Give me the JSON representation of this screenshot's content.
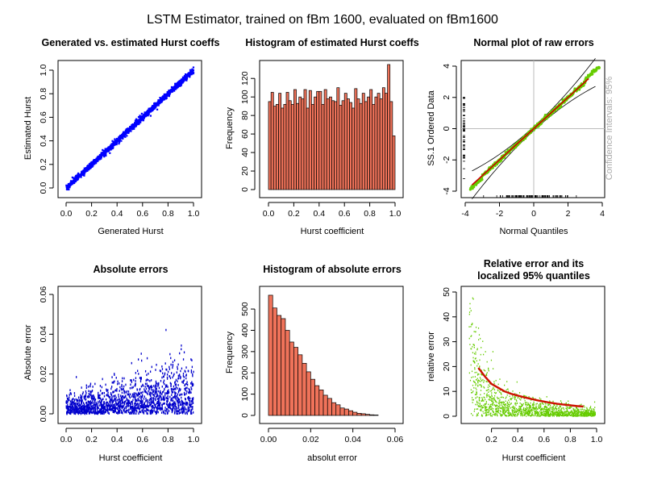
{
  "main_title": "LSTM Estimator, trained on fBm 1600, evaluated on fBm1600",
  "chart_data": [
    {
      "type": "scatter",
      "title": "Generated vs. estimated Hurst coeffs",
      "xlabel": "Generated Hurst",
      "ylabel": "Estimated Hurst",
      "xlim": [
        0,
        1
      ],
      "ylim": [
        0,
        1
      ],
      "xticks": [
        "0.0",
        "0.2",
        "0.4",
        "0.6",
        "0.8",
        "1.0"
      ],
      "yticks": [
        "0.0",
        "0.2",
        "0.4",
        "0.6",
        "0.8",
        "1.0"
      ],
      "color": "#0000ff",
      "description_points": {
        "relation": "y≈x",
        "x_range": [
          0.0,
          1.0
        ]
      }
    },
    {
      "type": "bar",
      "title": "Histogram of estimated Hurst coeffs",
      "xlabel": "Hurst coefficient",
      "ylabel": "Frequency",
      "xlim": [
        0,
        1
      ],
      "ylim": [
        0,
        135
      ],
      "xticks": [
        "0.0",
        "0.2",
        "0.4",
        "0.6",
        "0.8",
        "1.0"
      ],
      "yticks": [
        "0",
        "20",
        "40",
        "60",
        "80",
        "100",
        "120"
      ],
      "bin_width": 0.02,
      "values": [
        95,
        105,
        90,
        92,
        104,
        88,
        92,
        105,
        96,
        92,
        108,
        93,
        100,
        98,
        108,
        88,
        107,
        92,
        100,
        106,
        106,
        92,
        108,
        98,
        100,
        96,
        95,
        110,
        91,
        96,
        104,
        98,
        94,
        88,
        109,
        98,
        93,
        104,
        95,
        100,
        108,
        92,
        100,
        104,
        98,
        110,
        104,
        135,
        95,
        58
      ],
      "color": "#f0735a"
    },
    {
      "type": "scatter",
      "title": "Normal plot of raw errors",
      "xlabel": "Normal Quantiles",
      "ylabel": "SS.1 Ordered Data",
      "right_label": "Confidence Intervals: 95%",
      "xlim": [
        -4,
        4
      ],
      "ylim": [
        -4,
        4
      ],
      "xticks": [
        "-4",
        "-2",
        "0",
        "2",
        "4"
      ],
      "yticks": [
        "-4",
        "-2",
        "0",
        "2",
        "4"
      ],
      "color": "#66cc00",
      "line_color": "#cc0000",
      "relation": "y≈x"
    },
    {
      "type": "scatter",
      "title": "Absolute errors",
      "xlabel": "Hurst coefficient",
      "ylabel": "Absolute error",
      "xlim": [
        0,
        1
      ],
      "ylim": [
        0,
        0.06
      ],
      "xticks": [
        "0.0",
        "0.2",
        "0.4",
        "0.6",
        "0.8",
        "1.0"
      ],
      "yticks": [
        "0.00",
        "0.02",
        "0.04",
        "0.06"
      ],
      "color": "#0000cc"
    },
    {
      "type": "bar",
      "title": "Histogram of absolute errors",
      "xlabel": "absolut error",
      "ylabel": "Frequency",
      "xlim": [
        0,
        0.06
      ],
      "ylim": [
        0,
        580
      ],
      "xticks": [
        "0.00",
        "0.02",
        "0.04",
        "0.06"
      ],
      "yticks": [
        "0",
        "100",
        "200",
        "300",
        "400",
        "500"
      ],
      "bin_width": 0.002,
      "values": [
        565,
        505,
        470,
        455,
        400,
        345,
        320,
        285,
        245,
        205,
        170,
        140,
        120,
        95,
        80,
        60,
        50,
        35,
        30,
        22,
        15,
        10,
        8,
        5,
        3,
        2
      ],
      "color": "#f0735a"
    },
    {
      "type": "line",
      "title": "Relative error and its localized 95% quantiles",
      "title_lines": [
        "Relative error and its",
        "localized 95% quantiles"
      ],
      "xlabel": "Hurst coefficient",
      "ylabel": "relative error",
      "xlim": [
        0,
        1
      ],
      "ylim": [
        0,
        50
      ],
      "xticks": [
        "0.2",
        "0.4",
        "0.6",
        "0.8",
        "1.0"
      ],
      "yticks": [
        "0",
        "10",
        "20",
        "30",
        "40",
        "50"
      ],
      "quantile_line": {
        "x": [
          0.1,
          0.15,
          0.2,
          0.25,
          0.3,
          0.35,
          0.4,
          0.45,
          0.5,
          0.55,
          0.6,
          0.65,
          0.7,
          0.75,
          0.8,
          0.85,
          0.9
        ],
        "y": [
          19.5,
          16,
          13,
          11.5,
          10,
          9,
          8.3,
          7.6,
          7,
          6.4,
          5.9,
          5.4,
          5,
          4.7,
          4.4,
          4.1,
          3.9
        ]
      },
      "line_color": "#cc1100",
      "point_color": "#66cc00"
    }
  ]
}
